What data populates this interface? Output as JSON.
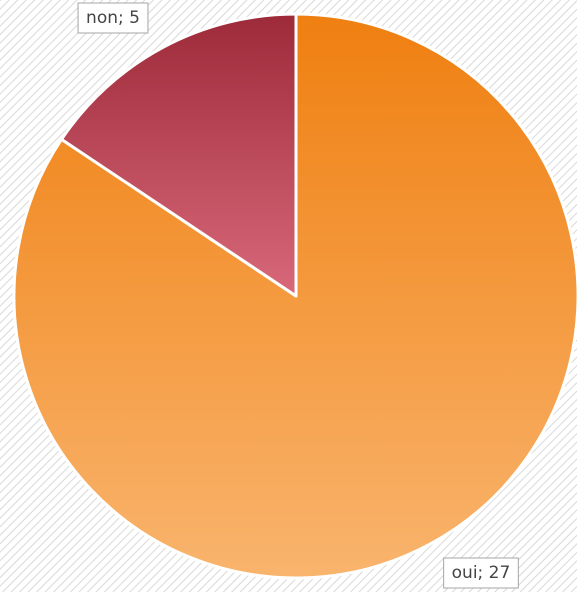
{
  "chart_data": {
    "type": "pie",
    "values": [
      27,
      5
    ],
    "value_labels": [
      "oui; 27",
      "non; 5"
    ],
    "gradients": [
      [
        "#ef7f10",
        "#f9b46d"
      ],
      [
        "#9d2a39",
        "#d8697a"
      ]
    ],
    "start_angle": 0,
    "direction": "clockwise"
  }
}
